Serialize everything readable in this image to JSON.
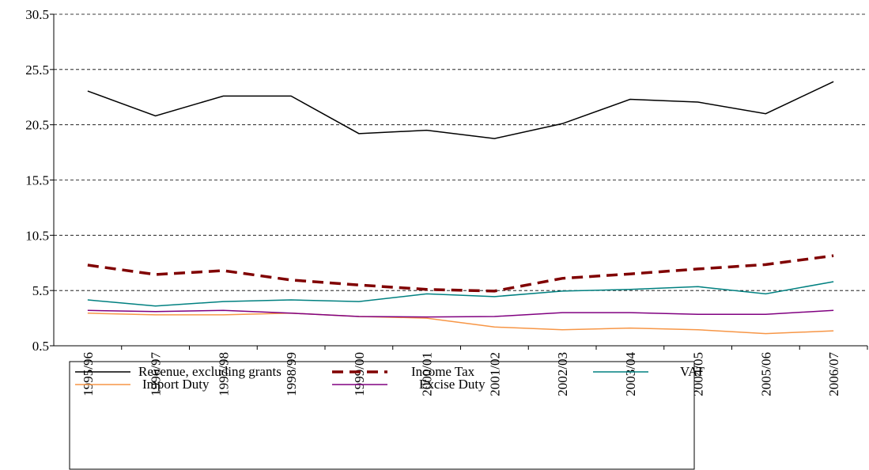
{
  "chart_data": {
    "type": "line",
    "categories": [
      "1995/96",
      "1996/97",
      "1997/98",
      "1998/99",
      "1999/00",
      "2000/01",
      "2001/02",
      "2002/03",
      "2003/04",
      "2004/05",
      "2005/06",
      "2006/07"
    ],
    "series": [
      {
        "name": "Revenue, excluding grants",
        "color": "#000000",
        "dash": false,
        "values": [
          23.55,
          21.3,
          23.1,
          23.1,
          19.7,
          20.0,
          19.25,
          20.6,
          22.8,
          22.55,
          21.5,
          24.4
        ]
      },
      {
        "name": "Income Tax",
        "color": "#800000",
        "dash": true,
        "values": [
          7.8,
          6.95,
          7.3,
          6.45,
          6.0,
          5.6,
          5.45,
          6.6,
          7.0,
          7.45,
          7.85,
          8.65
        ]
      },
      {
        "name": "VAT",
        "color": "#008080",
        "dash": false,
        "values": [
          4.65,
          4.1,
          4.5,
          4.65,
          4.5,
          5.2,
          4.95,
          5.45,
          5.6,
          5.85,
          5.2,
          6.3
        ]
      },
      {
        "name": "Import Duty",
        "color": "#f79646",
        "dash": false,
        "values": [
          3.45,
          3.3,
          3.3,
          3.45,
          3.15,
          3.0,
          2.2,
          1.95,
          2.1,
          1.95,
          1.6,
          1.85
        ]
      },
      {
        "name": "Excise Duty",
        "color": "#800080",
        "dash": false,
        "values": [
          3.7,
          3.6,
          3.7,
          3.45,
          3.15,
          3.1,
          3.15,
          3.5,
          3.5,
          3.35,
          3.35,
          3.7
        ]
      }
    ],
    "ylim": [
      0.5,
      30.5
    ],
    "yticks": [
      0.5,
      5.5,
      10.5,
      15.5,
      20.5,
      25.5,
      30.5
    ],
    "grid": true
  }
}
